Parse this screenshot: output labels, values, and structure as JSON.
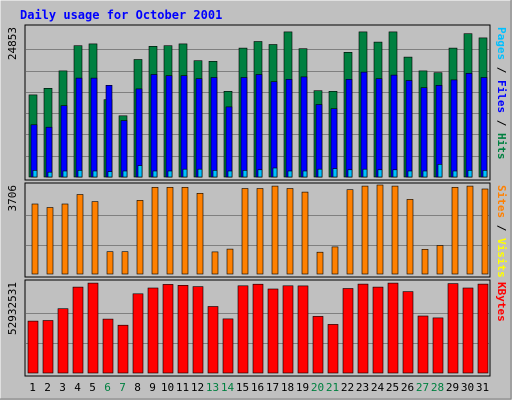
{
  "chart_data": {
    "type": "bar",
    "title": "Daily usage for October 2001",
    "x": [
      "1",
      "2",
      "3",
      "4",
      "5",
      "6",
      "7",
      "8",
      "9",
      "10",
      "11",
      "12",
      "13",
      "14",
      "15",
      "16",
      "17",
      "18",
      "19",
      "20",
      "21",
      "22",
      "23",
      "24",
      "25",
      "26",
      "27",
      "28",
      "29",
      "30",
      "31"
    ],
    "weekend_days": [
      6,
      7,
      13,
      14,
      20,
      21,
      27,
      28
    ],
    "panels": [
      {
        "name": "hits-files-pages",
        "max_label": "24853",
        "ymax": 24853,
        "legend": [
          {
            "text": "Pages",
            "color": "#00c0ff"
          },
          {
            "text": " / ",
            "color": "#000000"
          },
          {
            "text": "Files",
            "color": "#0000ff"
          },
          {
            "text": " / ",
            "color": "#000000"
          },
          {
            "text": "Hits",
            "color": "#008040"
          }
        ],
        "series": [
          {
            "name": "Hits",
            "color": "#008040",
            "values": [
              13700,
              14800,
              17700,
              21900,
              22200,
              12900,
              10200,
              19600,
              21800,
              21900,
              22200,
              19400,
              19300,
              14300,
              21500,
              22600,
              22100,
              24200,
              21400,
              14400,
              14300,
              20800,
              24200,
              22500,
              24200,
              20000,
              17700,
              17400,
              21500,
              23900,
              23200
            ]
          },
          {
            "name": "Files",
            "color": "#0000ff",
            "values": [
              8700,
              8300,
              11900,
              16500,
              16500,
              15300,
              9400,
              14700,
              17100,
              16900,
              16900,
              16400,
              16600,
              11700,
              16600,
              17100,
              15900,
              16300,
              16700,
              12100,
              11400,
              16300,
              17500,
              16400,
              17000,
              16100,
              14900,
              15300,
              16200,
              17300,
              16600
            ]
          },
          {
            "name": "Pages",
            "color": "#00c0ff",
            "values": [
              1100,
              800,
              1000,
              1100,
              1000,
              900,
              1000,
              1900,
              1000,
              1000,
              1300,
              1300,
              1100,
              1000,
              1100,
              1200,
              1500,
              1000,
              1000,
              1300,
              1400,
              1200,
              1300,
              1200,
              1200,
              1000,
              1000,
              2100,
              1000,
              1100,
              1100
            ]
          }
        ],
        "overlap": true
      },
      {
        "name": "visits-sites",
        "max_label": "3706",
        "ymax": 3706,
        "legend": [
          {
            "text": "Sites",
            "color": "#ff8000"
          },
          {
            "text": " / ",
            "color": "#000000"
          },
          {
            "text": "Visits",
            "color": "#ffff00"
          }
        ],
        "series": [
          {
            "name": "Visits",
            "color": "#ffff00",
            "values": [
              0,
              0,
              0,
              0,
              0,
              0,
              0,
              0,
              0,
              0,
              0,
              0,
              0,
              0,
              0,
              0,
              0,
              0,
              0,
              0,
              0,
              0,
              0,
              0,
              0,
              0,
              0,
              0,
              0,
              0,
              0
            ]
          },
          {
            "name": "Sites",
            "color": "#ff8000",
            "values": [
              2950,
              2800,
              2950,
              3350,
              3050,
              940,
              940,
              3100,
              3650,
              3650,
              3650,
              3400,
              930,
              1050,
              3600,
              3600,
              3700,
              3600,
              3450,
              920,
              1140,
              3550,
              3700,
              3750,
              3700,
              3140,
              1040,
              1200,
              3650,
              3700,
              3580
            ]
          }
        ],
        "overlap": true
      },
      {
        "name": "kbytes",
        "max_label": "52932531",
        "ymax": 52932531,
        "legend": [
          {
            "text": "KBytes",
            "color": "#ff0000"
          }
        ],
        "series": [
          {
            "name": "KBytes",
            "color": "#ff0000",
            "values": [
              30500000,
              30900000,
              37800000,
              50500000,
              52900000,
              31700000,
              28100000,
              46600000,
              50000000,
              52100000,
              51600000,
              50800000,
              39100000,
              31800000,
              51300000,
              52200000,
              49400000,
              51300000,
              51200000,
              33300000,
              28600000,
              49700000,
              52300000,
              50500000,
              52900000,
              47900000,
              33500000,
              32400000,
              52600000,
              50000000,
              52300000
            ]
          }
        ],
        "overlap": false
      }
    ]
  }
}
